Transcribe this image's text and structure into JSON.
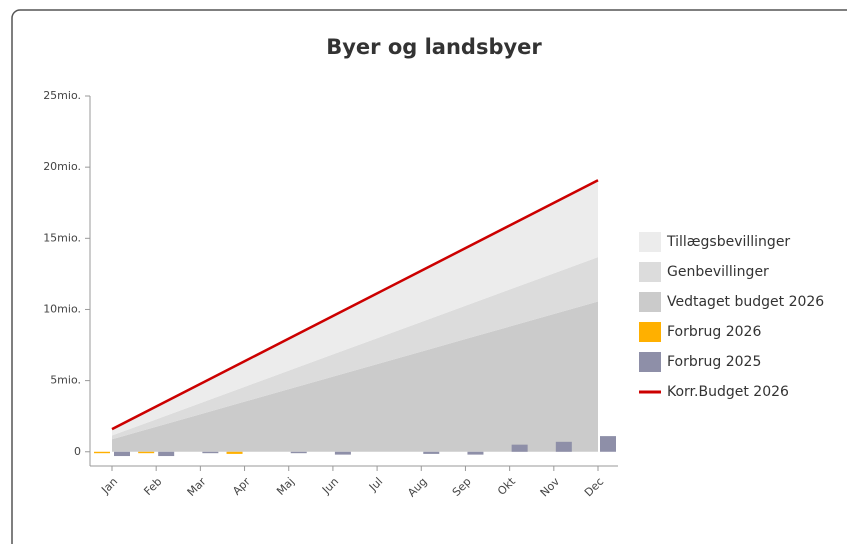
{
  "chart_data": {
    "type": "area",
    "title": "Byer og landsbyer",
    "categories": [
      "Jan",
      "Feb",
      "Mar",
      "Apr",
      "Maj",
      "Jun",
      "Jul",
      "Aug",
      "Sep",
      "Okt",
      "Nov",
      "Dec"
    ],
    "ylim": [
      -1,
      25
    ],
    "yticks": [
      {
        "value": 0,
        "label": "0"
      },
      {
        "value": 5,
        "label": "5mio."
      },
      {
        "value": 10,
        "label": "10mio."
      },
      {
        "value": 15,
        "label": "15mio."
      },
      {
        "value": 20,
        "label": "20mio."
      },
      {
        "value": 25,
        "label": "25mio."
      }
    ],
    "series": [
      {
        "name": "Tillægsbevillinger",
        "type": "area",
        "color": "#ececec",
        "values": [
          0.45,
          0.9,
          1.35,
          1.8,
          2.25,
          2.7,
          3.15,
          3.6,
          4.05,
          4.5,
          4.95,
          5.4
        ]
      },
      {
        "name": "Genbevillinger",
        "type": "area",
        "color": "#dcdcdc",
        "values": [
          0.26,
          0.52,
          0.78,
          1.04,
          1.3,
          1.56,
          1.82,
          2.08,
          2.34,
          2.6,
          2.86,
          3.12
        ]
      },
      {
        "name": "Vedtaget budget 2026",
        "type": "area",
        "color": "#cbcbcb",
        "values": [
          0.88,
          1.76,
          2.64,
          3.52,
          4.4,
          5.28,
          6.16,
          7.04,
          7.92,
          8.8,
          9.68,
          10.56
        ]
      },
      {
        "name": "Forbrug 2026",
        "type": "bar",
        "color": "#ffb000",
        "values": [
          -0.1,
          -0.1,
          null,
          -0.15,
          null,
          null,
          null,
          null,
          null,
          null,
          null,
          null
        ]
      },
      {
        "name": "Forbrug 2025",
        "type": "bar",
        "color": "#8e8fa8",
        "values": [
          -0.3,
          -0.3,
          -0.1,
          null,
          -0.1,
          -0.2,
          null,
          -0.15,
          -0.2,
          0.5,
          0.7,
          1.1
        ]
      },
      {
        "name": "Korr.Budget 2026",
        "type": "line",
        "color": "#cc0000",
        "values": [
          1.59,
          3.18,
          4.77,
          6.36,
          7.95,
          9.54,
          11.13,
          12.72,
          14.31,
          15.9,
          17.49,
          19.08
        ]
      }
    ]
  }
}
